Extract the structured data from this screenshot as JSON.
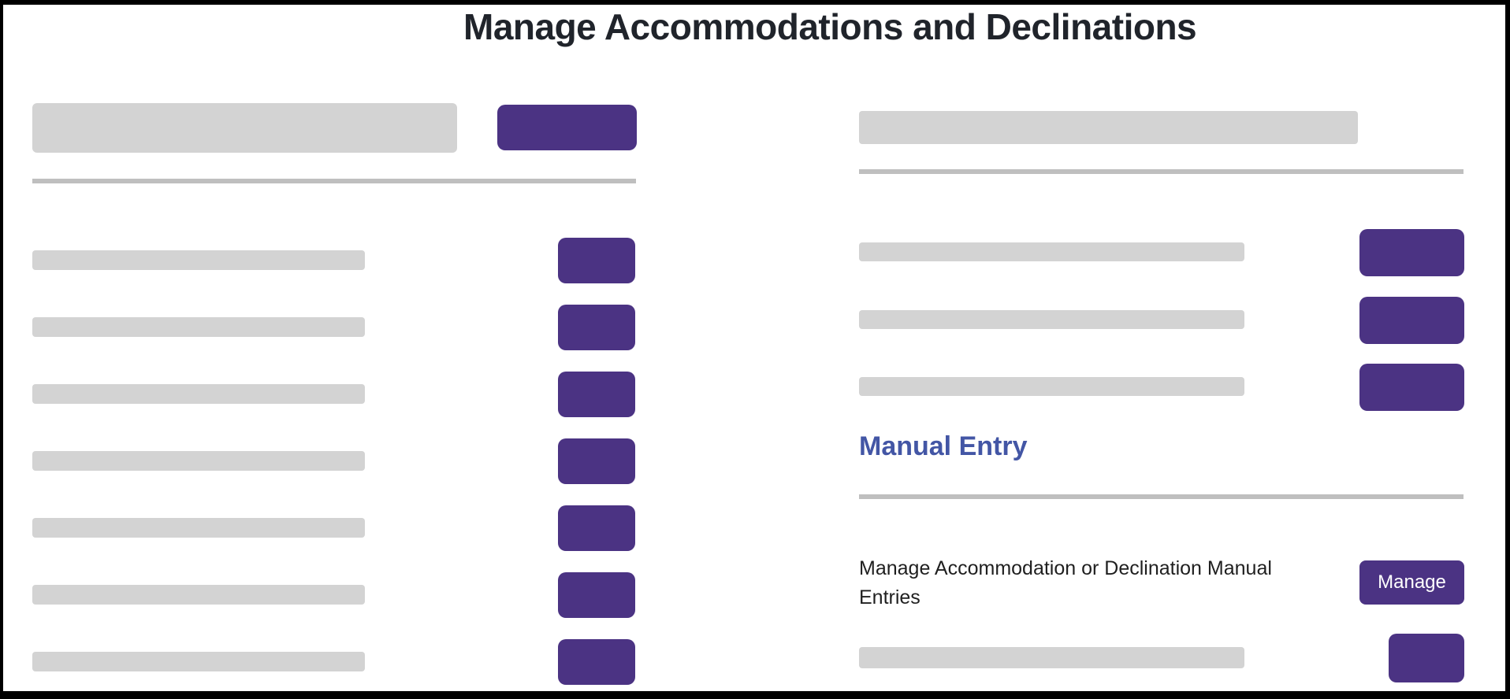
{
  "page": {
    "title": "Manage Accommodations and Declinations"
  },
  "colors": {
    "accent_purple": "#4b3383",
    "heading_indigo": "#4356a5",
    "skeleton_gray": "#d3d3d3",
    "divider_gray": "#bfbfbf",
    "title_text": "#20242b",
    "body_text": "#1f1f1f",
    "button_label_text": "#ffffff",
    "frame_border": "#000000",
    "background": "#ffffff"
  },
  "left_panel": {
    "skeleton_rows": 7
  },
  "right_panel": {
    "skeleton_rows": 3,
    "manual_entry": {
      "heading": "Manual Entry",
      "description": "Manage Accommodation or Declination Manual Entries",
      "manage_button_label": "Manage"
    }
  }
}
